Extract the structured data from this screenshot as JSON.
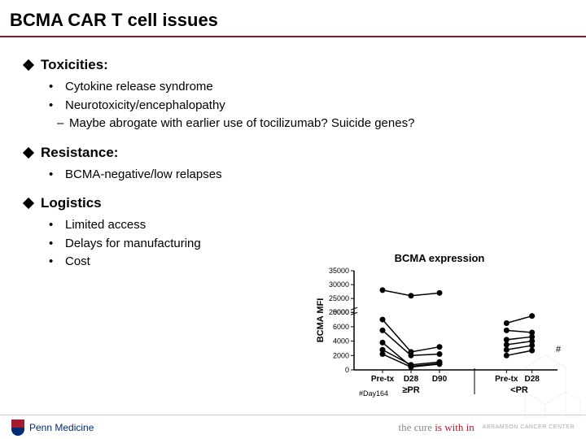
{
  "title": "BCMA CAR T cell issues",
  "sections": [
    {
      "heading": "Toxicities:",
      "items": [
        {
          "text": "Cytokine release syndrome"
        },
        {
          "text": "Neurotoxicity/encephalopathy",
          "sub": "Maybe abrogate with earlier use of tocilizumab? Suicide genes?"
        }
      ]
    },
    {
      "heading": "Resistance:",
      "items": [
        {
          "text": "BCMA-negative/low relapses"
        }
      ]
    },
    {
      "heading": "Logistics",
      "items": [
        {
          "text": "Limited access"
        },
        {
          "text": "Delays for manufacturing"
        },
        {
          "text": "Cost"
        }
      ]
    }
  ],
  "chart": {
    "title": "BCMA expression",
    "ylabel": "BCMA MFI",
    "x_groups": {
      "left": {
        "ticks": [
          "Pre-tx",
          "D28",
          "D90"
        ],
        "label": "≥PR"
      },
      "right": {
        "ticks": [
          "Pre-tx",
          "D28"
        ],
        "label": "<PR"
      }
    },
    "y_ticks": [
      0,
      2000,
      4000,
      6000,
      8000,
      20000,
      25000,
      30000,
      35000
    ],
    "break_between": [
      8000,
      20000
    ],
    "series_left": [
      [
        28000,
        26000,
        27000
      ],
      [
        7000,
        2500,
        3200
      ],
      [
        5500,
        2000,
        2200
      ],
      [
        3800,
        500,
        900
      ],
      [
        2800,
        700,
        1100
      ],
      [
        2200,
        400,
        800
      ]
    ],
    "series_right_note": "#",
    "series_right": [
      [
        6500,
        7500
      ],
      [
        5500,
        5200
      ],
      [
        4200,
        4600
      ],
      [
        3500,
        4000
      ],
      [
        2800,
        3400
      ],
      [
        2000,
        2700
      ]
    ],
    "footnote": "#Day164",
    "colors": {
      "line": "#000000",
      "marker": "#000000",
      "axis": "#000000",
      "bg": "#ffffff"
    },
    "marker_size": 3.5,
    "line_width": 1.5
  },
  "footer": {
    "left": "Penn Medicine",
    "right_pre": "the cure ",
    "right_em": "is with in",
    "abramson": "ABRAMSON CANCER CENTER"
  }
}
